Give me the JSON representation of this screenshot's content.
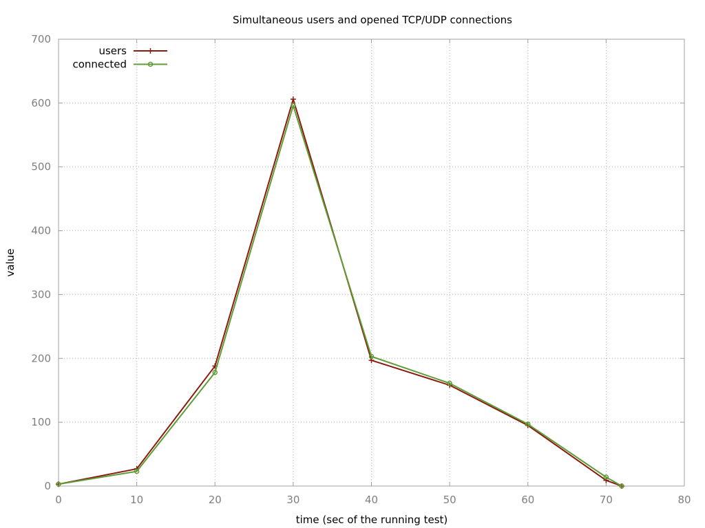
{
  "chart_data": {
    "type": "line",
    "title": "Simultaneous users and opened TCP/UDP connections",
    "xlabel": "time (sec of the running test)",
    "ylabel": "value",
    "xlim": [
      0,
      80
    ],
    "ylim": [
      0,
      700
    ],
    "xticks": [
      "0",
      "10",
      "20",
      "30",
      "40",
      "50",
      "60",
      "70",
      "80"
    ],
    "yticks": [
      "0",
      "100",
      "200",
      "300",
      "400",
      "500",
      "600",
      "700"
    ],
    "grid": true,
    "legend_position": "top-left",
    "series": [
      {
        "name": "users",
        "color": "#8b1a0e",
        "marker": "plus",
        "x": [
          0,
          10,
          20,
          30,
          40,
          50,
          60,
          70,
          72
        ],
        "y": [
          3,
          27,
          188,
          606,
          197,
          158,
          95,
          9,
          0
        ]
      },
      {
        "name": "connected",
        "color": "#5e9c36",
        "marker": "circle",
        "x": [
          0,
          10,
          20,
          30,
          40,
          50,
          60,
          70,
          72
        ],
        "y": [
          3,
          23,
          178,
          596,
          203,
          161,
          97,
          14,
          0
        ]
      }
    ]
  }
}
